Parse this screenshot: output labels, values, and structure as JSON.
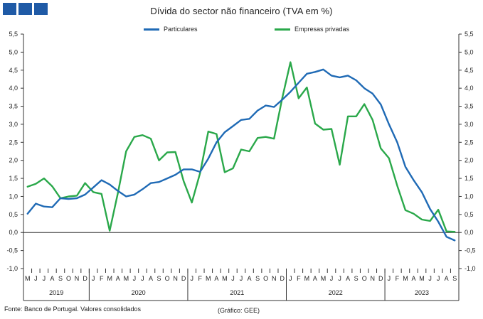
{
  "header": {
    "title": "Dívida do sector não financeiro (TVA em %)"
  },
  "colors": {
    "particulares": "#1f6ab5",
    "empresas": "#2aa84a",
    "brand": "#1f5aa6"
  },
  "footer": {
    "source": "Fonte: Banco de Portugal. Valores consolidados",
    "credit": "(Gráfico: GEE)"
  },
  "chart_data": {
    "type": "line",
    "title": "Dívida do sector não financeiro (TVA em %)",
    "ylim": [
      -1.0,
      5.5
    ],
    "yticks": [
      "5,5",
      "5,0",
      "4,5",
      "4,0",
      "3,5",
      "3,0",
      "2,5",
      "2,0",
      "1,5",
      "1,0",
      "0,5",
      "0,0",
      "-0,5",
      "-1,0"
    ],
    "yticks_right": [
      "5,5",
      "5,0",
      "4,5",
      "4,0",
      "3,5",
      "3,0",
      "2,5",
      "2,0",
      "1,5",
      "1,0",
      "0,5",
      "0,0",
      "-0,5",
      "-1,0"
    ],
    "months": [
      "M",
      "J",
      "J",
      "A",
      "S",
      "O",
      "N",
      "D",
      "J",
      "F",
      "M",
      "A",
      "M",
      "J",
      "J",
      "A",
      "S",
      "O",
      "N",
      "D",
      "J",
      "F",
      "M",
      "A",
      "M",
      "J",
      "J",
      "A",
      "S",
      "O",
      "N",
      "D",
      "J",
      "F",
      "M",
      "A",
      "M",
      "J",
      "J",
      "A",
      "S",
      "O",
      "N",
      "D",
      "J",
      "F",
      "M",
      "A",
      "M",
      "J",
      "J",
      "A",
      "S"
    ],
    "years": [
      {
        "label": "2019",
        "start": 0,
        "end": 8
      },
      {
        "label": "2020",
        "start": 8,
        "end": 20
      },
      {
        "label": "2021",
        "start": 20,
        "end": 32
      },
      {
        "label": "2022",
        "start": 32,
        "end": 44
      },
      {
        "label": "2023",
        "start": 44,
        "end": 53
      }
    ],
    "legend_position": "top",
    "series": [
      {
        "name": "Particulares",
        "values": [
          0.52,
          0.8,
          0.72,
          0.7,
          0.95,
          0.93,
          0.95,
          1.05,
          1.25,
          1.45,
          1.33,
          1.15,
          1.0,
          1.05,
          1.2,
          1.37,
          1.4,
          1.5,
          1.6,
          1.75,
          1.75,
          1.68,
          2.05,
          2.5,
          2.78,
          2.95,
          3.12,
          3.15,
          3.38,
          3.52,
          3.48,
          3.68,
          3.9,
          4.15,
          4.4,
          4.45,
          4.52,
          4.35,
          4.3,
          4.35,
          4.22,
          4.0,
          3.85,
          3.55,
          3.0,
          2.5,
          1.82,
          1.45,
          1.12,
          0.65,
          0.3,
          -0.12,
          -0.22
        ]
      },
      {
        "name": "Empresas privadas",
        "values": [
          1.27,
          1.35,
          1.5,
          1.28,
          0.95,
          1.0,
          1.02,
          1.37,
          1.12,
          1.07,
          0.05,
          1.1,
          2.25,
          2.65,
          2.7,
          2.6,
          2.0,
          2.22,
          2.23,
          1.42,
          0.83,
          1.65,
          2.8,
          2.73,
          1.67,
          1.78,
          2.3,
          2.25,
          2.62,
          2.65,
          2.6,
          3.72,
          4.72,
          3.72,
          4.02,
          3.02,
          2.85,
          2.87,
          1.88,
          3.22,
          3.22,
          3.56,
          3.12,
          2.33,
          2.06,
          1.3,
          0.62,
          0.52,
          0.36,
          0.32,
          0.63,
          0.03,
          0.02
        ]
      }
    ]
  }
}
